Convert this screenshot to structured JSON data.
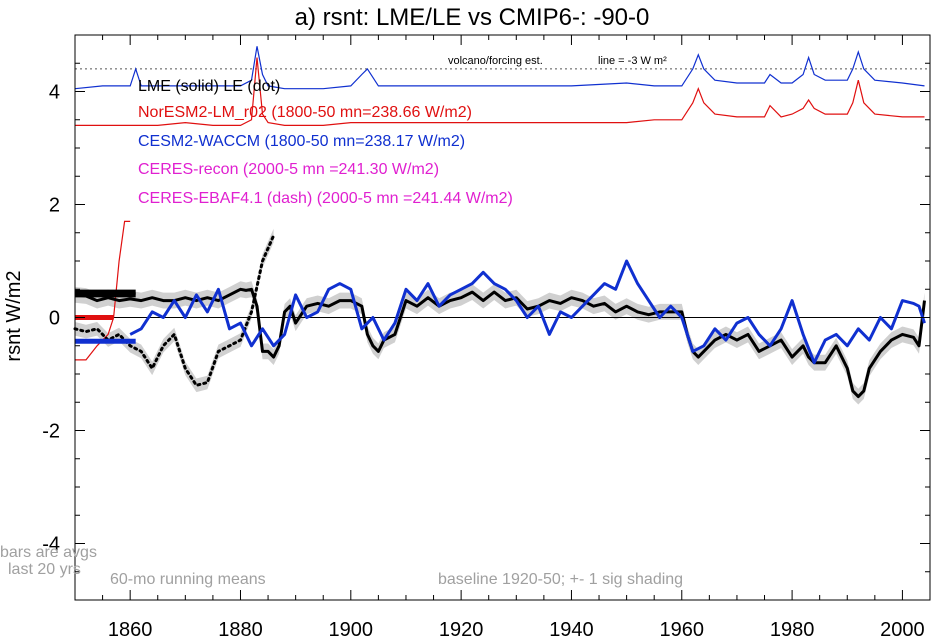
{
  "chart_data": {
    "type": "line",
    "title": "a) rsnt: LME/LE vs CMIP6-: -90-0",
    "ylabel": "rsnt W/m2",
    "xlabel": "",
    "xlim": [
      1850,
      2005
    ],
    "ylim": [
      -5,
      5
    ],
    "x_ticks": [
      1860,
      1880,
      1900,
      1920,
      1940,
      1960,
      1980,
      2000
    ],
    "y_ticks": [
      4,
      2,
      0,
      -2,
      -4
    ],
    "y_tick_labels": [
      "4",
      "2",
      "0",
      "-2",
      "-4"
    ],
    "grid": false,
    "legend": [
      {
        "text": "LME (solid)   LE (dot)",
        "color": "#000000"
      },
      {
        "text": "NorESM2-LM_r02 (1800-50 mn=238.66 W/m2)",
        "color": "#e01010"
      },
      {
        "text": "CESM2-WACCM (1800-50 mn=238.17 W/m2)",
        "color": "#1030d0"
      },
      {
        "text": "CERES-recon (2000-5 mn =241.30 W/m2)",
        "color": "#e020d0"
      },
      {
        "text": "CERES-EBAF4.1 (dash) (2000-5 mn =241.44 W/m2)",
        "color": "#e020d0"
      }
    ],
    "annotations": {
      "volcano": "volcano/forcing est.",
      "volcano_line": "line = -3 W m²",
      "bars_note_1": "bars are avgs",
      "bars_note_2": "last 20 yrs",
      "running": "60-mo running means",
      "baseline": "baseline 1920-50; +- 1 sig shading"
    },
    "reference_lines": {
      "volcano_dotted": 4.4,
      "zero": 0
    },
    "colors": {
      "lme": "#000000",
      "noresm": "#e01010",
      "cesm": "#1030d0",
      "shade": "#d0d0d0",
      "note": "#a0a0a0"
    },
    "series": [
      {
        "name": "LME (solid)",
        "style": "solid",
        "color": "#000000",
        "x": [
          1850,
          1852,
          1854,
          1856,
          1858,
          1860,
          1862,
          1864,
          1866,
          1868,
          1870,
          1872,
          1874,
          1876,
          1878,
          1880,
          1881,
          1882,
          1883,
          1884,
          1885,
          1886,
          1887,
          1888,
          1889,
          1890,
          1892,
          1894,
          1896,
          1898,
          1900,
          1902,
          1903,
          1904,
          1905,
          1906,
          1908,
          1910,
          1912,
          1914,
          1916,
          1918,
          1920,
          1922,
          1924,
          1926,
          1928,
          1930,
          1932,
          1934,
          1936,
          1938,
          1940,
          1942,
          1944,
          1946,
          1948,
          1950,
          1952,
          1954,
          1956,
          1958,
          1960,
          1961,
          1962,
          1963,
          1964,
          1966,
          1968,
          1970,
          1972,
          1974,
          1976,
          1978,
          1980,
          1981,
          1982,
          1983,
          1984,
          1986,
          1988,
          1990,
          1991,
          1992,
          1993,
          1994,
          1996,
          1998,
          2000,
          2002,
          2003,
          2004
        ],
        "y": [
          0.4,
          0.38,
          0.3,
          0.35,
          0.3,
          0.33,
          0.3,
          0.35,
          0.3,
          0.3,
          0.35,
          0.3,
          0.35,
          0.3,
          0.4,
          0.5,
          0.48,
          0.5,
          0.2,
          -0.6,
          -0.6,
          -0.7,
          -0.5,
          0.1,
          0.2,
          -0.1,
          0.2,
          0.25,
          0.2,
          0.3,
          0.3,
          0.2,
          -0.3,
          -0.5,
          -0.6,
          -0.4,
          -0.3,
          0.3,
          0.2,
          0.35,
          0.2,
          0.3,
          0.35,
          0.45,
          0.3,
          0.45,
          0.3,
          0.35,
          0.15,
          0.2,
          0.3,
          0.25,
          0.35,
          0.3,
          0.2,
          0.25,
          0.1,
          0.2,
          0.1,
          0.05,
          0.1,
          0.1,
          0.1,
          -0.3,
          -0.6,
          -0.7,
          -0.6,
          -0.4,
          -0.3,
          -0.4,
          -0.3,
          -0.6,
          -0.5,
          -0.4,
          -0.7,
          -0.6,
          -0.5,
          -0.7,
          -0.8,
          -0.8,
          -0.5,
          -0.9,
          -1.3,
          -1.4,
          -1.3,
          -0.9,
          -0.6,
          -0.4,
          -0.3,
          -0.35,
          -0.5,
          0.3
        ]
      },
      {
        "name": "LE (dot)",
        "style": "dot",
        "color": "#000000",
        "x": [
          1850,
          1852,
          1854,
          1856,
          1858,
          1860,
          1862,
          1864,
          1866,
          1868,
          1870,
          1872,
          1874,
          1876,
          1878,
          1880,
          1882,
          1884,
          1886
        ],
        "y": [
          -0.2,
          -0.25,
          -0.2,
          -0.4,
          -0.3,
          -0.5,
          -0.6,
          -0.9,
          -0.5,
          -0.3,
          -0.9,
          -1.2,
          -1.15,
          -0.6,
          -0.5,
          -0.4,
          0.1,
          1.0,
          1.45
        ]
      },
      {
        "name": "CESM2-WACCM",
        "style": "solid",
        "color": "#1030d0",
        "x": [
          1860,
          1862,
          1864,
          1866,
          1868,
          1870,
          1872,
          1874,
          1876,
          1878,
          1880,
          1882,
          1884,
          1886,
          1888,
          1890,
          1892,
          1894,
          1896,
          1898,
          1900,
          1902,
          1904,
          1906,
          1908,
          1910,
          1912,
          1914,
          1916,
          1918,
          1920,
          1922,
          1924,
          1926,
          1928,
          1930,
          1932,
          1934,
          1936,
          1938,
          1940,
          1942,
          1944,
          1946,
          1948,
          1950,
          1952,
          1954,
          1956,
          1958,
          1960,
          1962,
          1964,
          1966,
          1968,
          1970,
          1972,
          1974,
          1976,
          1978,
          1980,
          1982,
          1984,
          1986,
          1988,
          1990,
          1992,
          1994,
          1996,
          1998,
          2000,
          2002,
          2003,
          2004
        ],
        "y": [
          -0.3,
          -0.2,
          0.1,
          0.0,
          0.3,
          0.0,
          0.4,
          0.1,
          0.5,
          -0.2,
          -0.1,
          -0.5,
          -0.2,
          -0.5,
          -0.3,
          0.4,
          0.0,
          0.1,
          0.5,
          0.6,
          0.5,
          -0.2,
          0.0,
          -0.4,
          -0.1,
          0.5,
          0.3,
          0.6,
          0.2,
          0.4,
          0.5,
          0.6,
          0.8,
          0.6,
          0.5,
          0.3,
          0.0,
          0.2,
          -0.3,
          0.1,
          0.0,
          0.2,
          0.4,
          0.6,
          0.5,
          1.0,
          0.6,
          0.3,
          0.0,
          0.2,
          0.0,
          -0.6,
          -0.5,
          -0.2,
          -0.4,
          -0.1,
          0.0,
          -0.3,
          -0.5,
          -0.2,
          0.3,
          -0.3,
          -0.8,
          -0.4,
          -0.3,
          -0.5,
          -0.2,
          -0.4,
          0.0,
          -0.2,
          0.3,
          0.25,
          0.2,
          -0.1
        ]
      }
    ],
    "volcano_series": [
      {
        "name": "CESM2-WACCM volcano",
        "color": "#1030d0",
        "x": [
          1850,
          1855,
          1860,
          1861,
          1862,
          1865,
          1870,
          1875,
          1880,
          1882,
          1883,
          1884,
          1885,
          1888,
          1895,
          1900,
          1902,
          1903,
          1905,
          1910,
          1920,
          1930,
          1940,
          1950,
          1955,
          1960,
          1962,
          1963,
          1964,
          1966,
          1970,
          1975,
          1976,
          1978,
          1980,
          1982,
          1983,
          1984,
          1986,
          1990,
          1991,
          1992,
          1993,
          1995,
          2000,
          2004
        ],
        "y": [
          4.05,
          4.1,
          4.1,
          4.4,
          4.1,
          4.1,
          4.1,
          4.1,
          4.1,
          4.2,
          4.8,
          4.3,
          4.1,
          4.05,
          4.05,
          4.1,
          4.3,
          4.4,
          4.1,
          4.1,
          4.1,
          4.1,
          4.1,
          4.15,
          4.1,
          4.1,
          4.4,
          4.65,
          4.4,
          4.2,
          4.15,
          4.15,
          4.3,
          4.15,
          4.15,
          4.3,
          4.6,
          4.3,
          4.2,
          4.2,
          4.4,
          4.7,
          4.4,
          4.2,
          4.15,
          4.1
        ]
      },
      {
        "name": "NorESM2-LM volcano",
        "color": "#e01010",
        "x": [
          1850,
          1855,
          1860,
          1865,
          1870,
          1875,
          1880,
          1882,
          1883,
          1884,
          1885,
          1888,
          1895,
          1900,
          1910,
          1920,
          1930,
          1940,
          1950,
          1955,
          1960,
          1962,
          1963,
          1964,
          1966,
          1970,
          1975,
          1976,
          1978,
          1980,
          1982,
          1983,
          1984,
          1986,
          1990,
          1991,
          1992,
          1993,
          1995,
          2000,
          2004
        ],
        "y": [
          3.4,
          3.4,
          3.4,
          3.4,
          3.45,
          3.4,
          3.4,
          3.5,
          4.6,
          3.6,
          3.45,
          3.4,
          3.4,
          3.45,
          3.45,
          3.45,
          3.45,
          3.45,
          3.45,
          3.5,
          3.5,
          3.8,
          4.05,
          3.8,
          3.6,
          3.55,
          3.55,
          3.75,
          3.55,
          3.6,
          3.7,
          3.85,
          3.7,
          3.6,
          3.6,
          3.8,
          4.2,
          3.8,
          3.6,
          3.55,
          3.55
        ]
      },
      {
        "name": "NorESM2-LM_r02",
        "color": "#e01010",
        "x": [
          1850,
          1852,
          1854,
          1856,
          1857,
          1858,
          1859,
          1860
        ],
        "y": [
          -0.75,
          -0.75,
          -0.5,
          -0.3,
          0.0,
          1.0,
          1.7,
          1.7
        ]
      }
    ],
    "bars": [
      {
        "color": "#000000",
        "y": 0.45,
        "x": [
          1850,
          1861
        ]
      },
      {
        "color": "#000000",
        "y": 0.4,
        "x": [
          1850,
          1861
        ]
      },
      {
        "color": "#e01010",
        "y": 0.0,
        "x": [
          1850,
          1857
        ]
      },
      {
        "color": "#1030d0",
        "y": -0.42,
        "x": [
          1850,
          1861
        ]
      }
    ]
  }
}
